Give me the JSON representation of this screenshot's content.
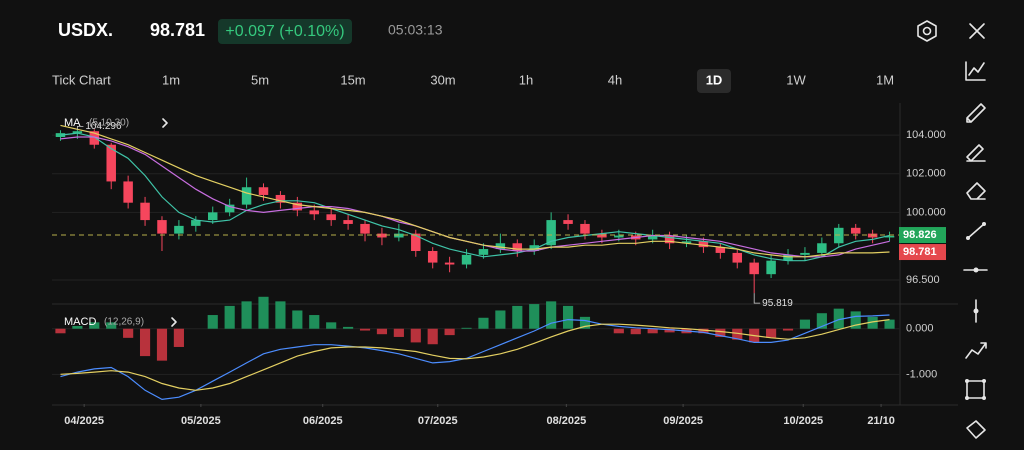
{
  "header": {
    "symbol": "USDX.",
    "price": "98.781",
    "change": "+0.097 (+0.10%)",
    "time": "05:03:13"
  },
  "timeframes": [
    "Tick Chart",
    "1m",
    "5m",
    "15m",
    "30m",
    "1h",
    "4h",
    "1D",
    "1W",
    "1M"
  ],
  "active_timeframe": 7,
  "chart_data": [
    {
      "type": "candlestick",
      "indicator": "MA",
      "params": "(5,10,30)",
      "xlim": [
        -0.5,
        49.5
      ],
      "ylim": [
        95.36,
        105.66
      ],
      "yticks": [
        {
          "value": 104,
          "label": "104.000"
        },
        {
          "value": 102,
          "label": "102.000"
        },
        {
          "value": 100,
          "label": "100.000"
        },
        {
          "value": 96.5,
          "label": "96.500"
        }
      ],
      "up_color": "#2ebd85",
      "down_color": "#f6465d",
      "ohlc": [
        [
          103.9,
          104.25,
          103.7,
          104.1
        ],
        [
          104.1,
          104.296,
          103.8,
          104.2
        ],
        [
          104.2,
          104.3,
          103.3,
          103.5
        ],
        [
          103.5,
          103.6,
          101.2,
          101.6
        ],
        [
          101.6,
          101.9,
          100.2,
          100.5
        ],
        [
          100.5,
          100.8,
          99.3,
          99.6
        ],
        [
          99.6,
          99.8,
          98.0,
          98.9
        ],
        [
          98.9,
          99.6,
          98.6,
          99.3
        ],
        [
          99.3,
          99.8,
          99.0,
          99.6
        ],
        [
          99.6,
          100.3,
          99.4,
          100.0
        ],
        [
          100.0,
          100.7,
          99.8,
          100.4
        ],
        [
          100.4,
          101.8,
          100.2,
          101.3
        ],
        [
          101.3,
          101.5,
          100.6,
          100.9
        ],
        [
          100.9,
          101.1,
          100.2,
          100.5
        ],
        [
          100.5,
          100.8,
          99.8,
          100.1
        ],
        [
          100.1,
          100.4,
          99.6,
          99.9
        ],
        [
          99.9,
          100.2,
          99.3,
          99.6
        ],
        [
          99.6,
          99.9,
          99.1,
          99.4
        ],
        [
          99.4,
          99.6,
          98.5,
          98.9
        ],
        [
          98.9,
          99.2,
          98.3,
          98.7
        ],
        [
          98.7,
          99.4,
          98.5,
          98.9
        ],
        [
          98.9,
          99.1,
          97.7,
          98.0
        ],
        [
          98.0,
          98.2,
          97.1,
          97.4
        ],
        [
          97.4,
          97.7,
          96.9,
          97.3
        ],
        [
          97.3,
          98.1,
          97.1,
          97.8
        ],
        [
          97.8,
          98.4,
          97.6,
          98.1
        ],
        [
          98.1,
          98.9,
          97.9,
          98.4
        ],
        [
          98.4,
          98.6,
          97.7,
          98.0
        ],
        [
          98.0,
          98.6,
          97.8,
          98.3
        ],
        [
          98.3,
          100.0,
          98.1,
          99.6
        ],
        [
          99.6,
          99.9,
          99.1,
          99.4
        ],
        [
          99.4,
          99.6,
          98.6,
          98.9
        ],
        [
          98.9,
          99.1,
          98.4,
          98.7
        ],
        [
          98.7,
          99.1,
          98.5,
          98.8
        ],
        [
          98.8,
          99.0,
          98.3,
          98.6
        ],
        [
          98.6,
          99.1,
          98.4,
          98.8
        ],
        [
          98.8,
          99.0,
          98.1,
          98.4
        ],
        [
          98.4,
          98.8,
          98.2,
          98.5
        ],
        [
          98.5,
          98.7,
          97.9,
          98.2
        ],
        [
          98.2,
          98.4,
          97.6,
          97.9
        ],
        [
          97.9,
          98.1,
          97.1,
          97.4
        ],
        [
          97.4,
          97.6,
          95.819,
          96.8
        ],
        [
          96.8,
          97.8,
          96.6,
          97.5
        ],
        [
          97.5,
          98.1,
          97.3,
          97.8
        ],
        [
          97.8,
          98.2,
          97.5,
          97.9
        ],
        [
          97.9,
          98.7,
          97.7,
          98.4
        ],
        [
          98.4,
          99.4,
          98.2,
          99.2
        ],
        [
          99.2,
          99.4,
          98.6,
          98.9
        ],
        [
          98.9,
          99.1,
          98.4,
          98.7
        ],
        [
          98.7,
          99.0,
          98.5,
          98.781
        ]
      ],
      "series": [
        {
          "color": "#3fc4a8",
          "values": [
            104.0,
            104.1,
            103.9,
            103.3,
            102.8,
            101.9,
            100.8,
            100.0,
            99.6,
            99.5,
            99.6,
            100.1,
            100.4,
            100.6,
            100.6,
            100.5,
            100.2,
            99.9,
            99.6,
            99.3,
            99.1,
            98.8,
            98.4,
            98.1,
            97.9,
            97.7,
            97.8,
            97.9,
            98.1,
            98.5,
            98.7,
            98.8,
            98.9,
            99.0,
            98.9,
            98.8,
            98.7,
            98.6,
            98.5,
            98.4,
            98.1,
            97.8,
            97.6,
            97.5,
            97.5,
            97.7,
            98.2,
            98.5,
            98.6,
            98.8
          ]
        },
        {
          "color": "#c86ee0",
          "values": [
            103.8,
            103.9,
            103.9,
            103.7,
            103.4,
            103.0,
            102.4,
            101.8,
            101.2,
            100.7,
            100.3,
            100.1,
            100.0,
            100.1,
            100.2,
            100.3,
            100.3,
            100.2,
            100.0,
            99.8,
            99.5,
            99.3,
            99.0,
            98.7,
            98.5,
            98.3,
            98.1,
            98.0,
            98.0,
            98.2,
            98.3,
            98.4,
            98.5,
            98.6,
            98.7,
            98.8,
            98.8,
            98.7,
            98.6,
            98.5,
            98.3,
            98.1,
            97.9,
            97.8,
            97.7,
            97.7,
            97.8,
            98.1,
            98.3,
            98.5
          ]
        },
        {
          "color": "#e3cf62",
          "values": [
            104.5,
            104.3,
            104.1,
            103.8,
            103.5,
            103.1,
            102.7,
            102.3,
            101.9,
            101.6,
            101.3,
            101.0,
            100.8,
            100.6,
            100.4,
            100.3,
            100.2,
            100.1,
            100.0,
            99.8,
            99.6,
            99.3,
            99.0,
            98.7,
            98.5,
            98.3,
            98.2,
            98.1,
            98.1,
            98.2,
            98.2,
            98.3,
            98.3,
            98.4,
            98.4,
            98.5,
            98.5,
            98.4,
            98.3,
            98.2,
            98.1,
            97.9,
            97.8,
            97.7,
            97.7,
            97.8,
            97.9,
            97.9,
            97.9,
            97.95
          ]
        }
      ],
      "annotations": [
        {
          "index": 1,
          "value": 104.296
        },
        {
          "index": 41,
          "value": 95.819
        }
      ],
      "price_lines": [
        {
          "value": 98.826,
          "color": "#22a65a",
          "dashed": true
        },
        {
          "value": 98.781,
          "color": "#e5484d",
          "dashed": false
        }
      ]
    },
    {
      "type": "macd",
      "title": "MACD",
      "params": "(12,26,9)",
      "xlim": [
        -0.5,
        49.5
      ],
      "ylim": [
        -1.65,
        0.52
      ],
      "yticks": [
        {
          "value": 0,
          "label": "0.000"
        },
        {
          "value": -1,
          "label": "-1.000"
        }
      ],
      "xticks": [
        {
          "value": 1.4,
          "label": "04/2025"
        },
        {
          "value": 8.3,
          "label": "05/2025"
        },
        {
          "value": 15.5,
          "label": "06/2025"
        },
        {
          "value": 22.3,
          "label": "07/2025"
        },
        {
          "value": 29.9,
          "label": "08/2025"
        },
        {
          "value": 36.8,
          "label": "09/2025"
        },
        {
          "value": 43.9,
          "label": "10/2025"
        },
        {
          "value": 48.5,
          "label": "21/10"
        }
      ],
      "histogram": [
        -0.1,
        0.06,
        0.14,
        0.14,
        -0.2,
        -0.6,
        -0.7,
        -0.4,
        0.0,
        0.3,
        0.5,
        0.6,
        0.7,
        0.6,
        0.4,
        0.3,
        0.14,
        0.04,
        -0.04,
        -0.12,
        -0.18,
        -0.3,
        -0.34,
        -0.14,
        0.02,
        0.24,
        0.4,
        0.5,
        0.54,
        0.6,
        0.5,
        0.26,
        0.0,
        -0.1,
        -0.12,
        -0.1,
        -0.08,
        -0.1,
        -0.1,
        -0.18,
        -0.24,
        -0.3,
        -0.2,
        -0.04,
        0.2,
        0.34,
        0.44,
        0.38,
        0.26,
        0.2
      ],
      "up_color": "#1f8f5a",
      "down_color": "#b8323c",
      "series": [
        {
          "color": "#4c8dff",
          "values": [
            -1.05,
            -0.95,
            -0.88,
            -0.85,
            -1.05,
            -1.35,
            -1.55,
            -1.5,
            -1.35,
            -1.15,
            -0.95,
            -0.75,
            -0.55,
            -0.45,
            -0.4,
            -0.35,
            -0.35,
            -0.38,
            -0.42,
            -0.48,
            -0.55,
            -0.65,
            -0.75,
            -0.72,
            -0.65,
            -0.5,
            -0.35,
            -0.2,
            -0.05,
            0.12,
            0.2,
            0.18,
            0.1,
            0.05,
            0.02,
            0.0,
            -0.02,
            -0.05,
            -0.08,
            -0.15,
            -0.22,
            -0.3,
            -0.3,
            -0.25,
            -0.1,
            0.05,
            0.2,
            0.27,
            0.28,
            0.3
          ]
        },
        {
          "color": "#e3cf62",
          "values": [
            -1.0,
            -0.98,
            -0.95,
            -0.92,
            -0.95,
            -1.05,
            -1.2,
            -1.3,
            -1.35,
            -1.3,
            -1.2,
            -1.05,
            -0.9,
            -0.75,
            -0.6,
            -0.5,
            -0.42,
            -0.4,
            -0.4,
            -0.42,
            -0.46,
            -0.5,
            -0.58,
            -0.65,
            -0.66,
            -0.62,
            -0.55,
            -0.45,
            -0.32,
            -0.18,
            -0.05,
            0.05,
            0.1,
            0.1,
            0.08,
            0.05,
            0.02,
            0.0,
            -0.03,
            -0.06,
            -0.1,
            -0.15,
            -0.2,
            -0.23,
            -0.2,
            -0.12,
            -0.02,
            0.08,
            0.15,
            0.2
          ]
        }
      ]
    }
  ]
}
